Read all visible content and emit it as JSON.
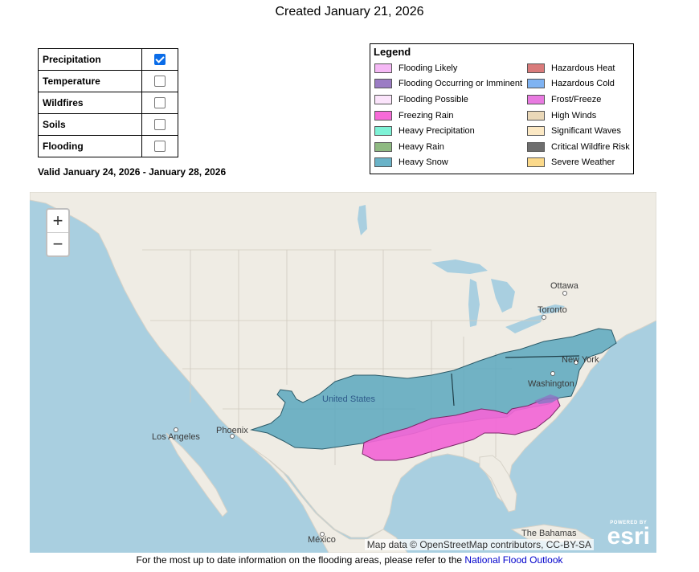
{
  "header": {
    "created": "Created January 21, 2026"
  },
  "hazard_toggles": [
    {
      "label": "Precipitation",
      "checked": true
    },
    {
      "label": "Temperature",
      "checked": false
    },
    {
      "label": "Wildfires",
      "checked": false
    },
    {
      "label": "Soils",
      "checked": false
    },
    {
      "label": "Flooding",
      "checked": false
    }
  ],
  "valid_range": "Valid January 24, 2026 - January 28, 2026",
  "legend": {
    "title": "Legend",
    "col1": [
      {
        "label": "Flooding Likely",
        "color": "#f5b8f5"
      },
      {
        "label": "Flooding Occurring or Imminent",
        "color": "#9b7cc4"
      },
      {
        "label": "Flooding Possible",
        "color": "#fbe4fb"
      },
      {
        "label": "Freezing Rain",
        "color": "#f76ad8"
      },
      {
        "label": "Heavy Precipitation",
        "color": "#7ef2d6"
      },
      {
        "label": "Heavy Rain",
        "color": "#8fba82"
      },
      {
        "label": "Heavy Snow",
        "color": "#6ab3c8"
      }
    ],
    "col2": [
      {
        "label": "Hazardous Heat",
        "color": "#d97b7b"
      },
      {
        "label": "Hazardous Cold",
        "color": "#7fb3f2"
      },
      {
        "label": "Frost/Freeze",
        "color": "#e87ae0"
      },
      {
        "label": "High Winds",
        "color": "#ead8b8"
      },
      {
        "label": "Significant Waves",
        "color": "#fbe8c4"
      },
      {
        "label": "Critical Wildfire Risk",
        "color": "#6e6e6e"
      },
      {
        "label": "Severe Weather",
        "color": "#fbd98a"
      }
    ]
  },
  "map": {
    "zoom_in": "+",
    "zoom_out": "−",
    "labels": {
      "ottawa": "Ottawa",
      "toronto": "Toronto",
      "new_york": "New York",
      "washington": "Washington",
      "united_states": "United States",
      "phoenix": "Phoenix",
      "los_angeles": "Los Angeles",
      "mexico": "México",
      "bahamas": "The Bahamas"
    },
    "attribution": "Map data © OpenStreetMap contributors, CC-BY-SA",
    "esri_powered": "POWERED BY",
    "esri_logo": "esri"
  },
  "footer": {
    "text": "For the most up to date information on the flooding areas, please refer to the ",
    "link": "National Flood Outlook"
  }
}
